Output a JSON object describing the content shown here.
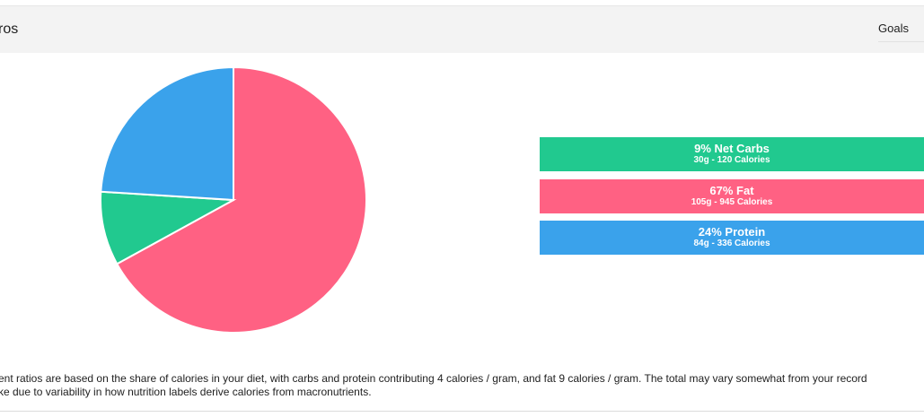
{
  "header": {
    "title": "ros",
    "goals_label": "Goals"
  },
  "chart_data": {
    "type": "pie",
    "categories": [
      "Net Carbs",
      "Fat",
      "Protein"
    ],
    "values": [
      9,
      67,
      24
    ],
    "colors": [
      "#21c98f",
      "#ff6183",
      "#3aa2eb"
    ],
    "slice_order_clockwise_from_top": [
      "Fat",
      "Net Carbs",
      "Protein"
    ]
  },
  "legend": {
    "items": [
      {
        "label": "9% Net Carbs",
        "detail": "30g - 120 Calories",
        "color": "#21c98f"
      },
      {
        "label": "67% Fat",
        "detail": "105g - 945 Calories",
        "color": "#ff6183"
      },
      {
        "label": "24% Protein",
        "detail": "84g - 336 Calories",
        "color": "#3aa2eb"
      }
    ]
  },
  "footnote": {
    "line1": "ent ratios are based on the share of calories in your diet, with carbs and protein contributing 4 calories / gram, and fat 9 calories / gram. The total may vary somewhat from your record",
    "line2": "ke due to variability in how nutrition labels derive calories from macronutrients."
  }
}
